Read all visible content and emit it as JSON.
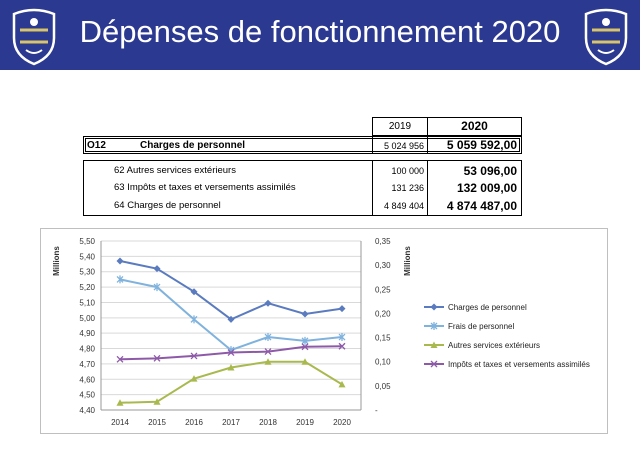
{
  "slide": {
    "title": "Dépenses de fonctionnement 2020",
    "header_color": "#2b3990"
  },
  "table": {
    "year_prev": "2019",
    "year_curr": "2020",
    "section": {
      "code": "O12",
      "label": "Charges de personnel",
      "v2019": "5 024 956",
      "v2020": "5 059 592,00"
    },
    "rows": [
      {
        "label": "62 Autres services extérieurs",
        "v2019": "100 000",
        "v2020": "53 096,00"
      },
      {
        "label": "63 Impôts et taxes et versements assimilés",
        "v2019": "131 236",
        "v2020": "132 009,00"
      },
      {
        "label": "64 Charges de personnel",
        "v2019": "4 849 404",
        "v2020": "4 874 487,00"
      }
    ]
  },
  "chart_data": {
    "type": "line",
    "categories": [
      "2014",
      "2015",
      "2016",
      "2017",
      "2018",
      "2019",
      "2020"
    ],
    "yleft": {
      "label": "Millions",
      "ylim": [
        4.4,
        5.5
      ],
      "ticks": [
        "5,50",
        "5,40",
        "5,30",
        "5,20",
        "5,10",
        "5,00",
        "4,90",
        "4,80",
        "4,70",
        "4,60",
        "4,50",
        "4,40"
      ]
    },
    "yright": {
      "label": "Millions",
      "ylim": [
        0,
        0.35
      ],
      "ticks": [
        "0,35",
        "0,30",
        "0,25",
        "0,20",
        "0,15",
        "0,10",
        "0,05",
        "-"
      ]
    },
    "series": [
      {
        "name": "Charges de personnel",
        "axis": "left",
        "color": "#5a7bbf",
        "marker": "diamond",
        "values": [
          5.37,
          5.32,
          5.17,
          4.99,
          5.095,
          5.025,
          5.06
        ]
      },
      {
        "name": "Frais de personnel",
        "axis": "left",
        "color": "#7fb2dd",
        "marker": "star",
        "values": [
          5.25,
          5.2,
          4.99,
          4.79,
          4.875,
          4.85,
          4.875
        ]
      },
      {
        "name": "Autres services extérieurs",
        "axis": "right",
        "color": "#a9b94e",
        "marker": "triangle",
        "values": [
          0.015,
          0.017,
          0.065,
          0.088,
          0.1,
          0.1,
          0.053
        ]
      },
      {
        "name": "Impôts et taxes et versements assimilés",
        "axis": "right",
        "color": "#8e5aa8",
        "marker": "x",
        "values": [
          0.105,
          0.107,
          0.112,
          0.119,
          0.121,
          0.131,
          0.132
        ]
      }
    ],
    "legend_position": "right",
    "grid": true
  }
}
